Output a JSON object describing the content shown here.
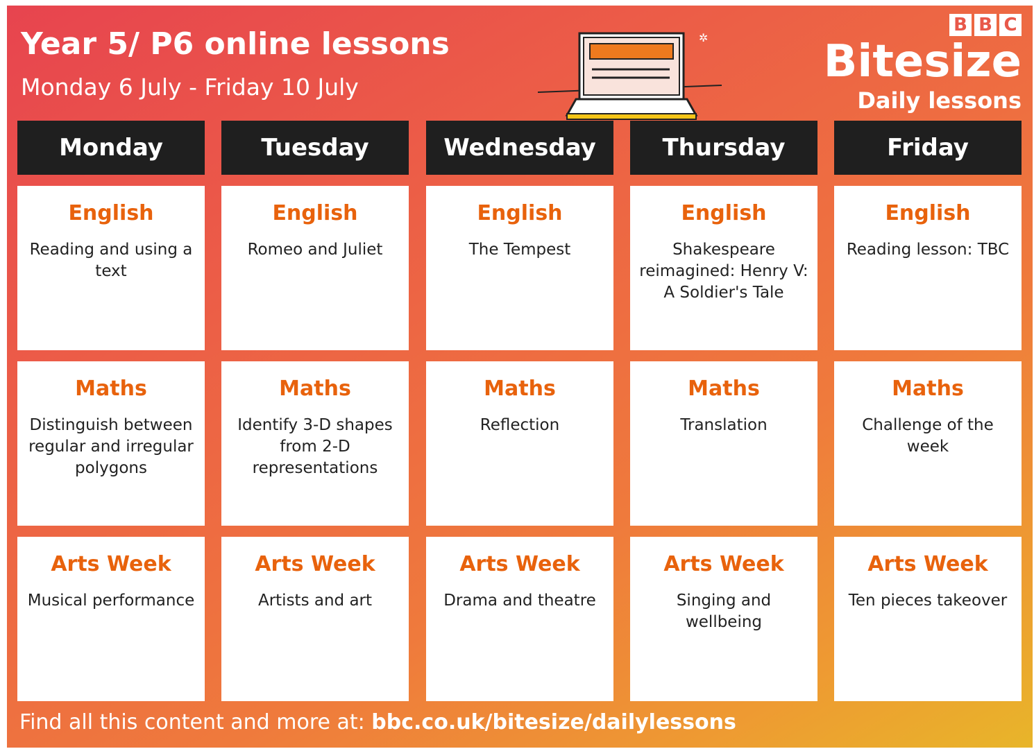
{
  "header": {
    "title": "Year 5/ P6 online lessons",
    "subtitle": "Monday 6 July - Friday 10 July"
  },
  "brand": {
    "letters": [
      "B",
      "B",
      "C"
    ],
    "name": "Bitesize",
    "tagline": "Daily lessons"
  },
  "days": [
    {
      "name": "Monday",
      "lessons": [
        {
          "subject": "English",
          "topic": "Reading and using a text"
        },
        {
          "subject": "Maths",
          "topic": "Distinguish between regular and irregular polygons"
        },
        {
          "subject": "Arts Week",
          "topic": "Musical performance"
        }
      ]
    },
    {
      "name": "Tuesday",
      "lessons": [
        {
          "subject": "English",
          "topic": "Romeo and Juliet"
        },
        {
          "subject": "Maths",
          "topic": "Identify 3-D shapes from 2-D representations"
        },
        {
          "subject": "Arts Week",
          "topic": "Artists and art"
        }
      ]
    },
    {
      "name": "Wednesday",
      "lessons": [
        {
          "subject": "English",
          "topic": "The Tempest"
        },
        {
          "subject": "Maths",
          "topic": "Reflection"
        },
        {
          "subject": "Arts Week",
          "topic": "Drama and theatre"
        }
      ]
    },
    {
      "name": "Thursday",
      "lessons": [
        {
          "subject": "English",
          "topic": "Shakespeare reimagined: Henry V: A Soldier's Tale"
        },
        {
          "subject": "Maths",
          "topic": "Translation"
        },
        {
          "subject": "Arts Week",
          "topic": "Singing and wellbeing"
        }
      ]
    },
    {
      "name": "Friday",
      "lessons": [
        {
          "subject": "English",
          "topic": "Reading lesson: TBC"
        },
        {
          "subject": "Maths",
          "topic": "Challenge of the week"
        },
        {
          "subject": "Arts Week",
          "topic": "Ten pieces takeover"
        }
      ]
    }
  ],
  "footer": {
    "text": "Find all this content and more at:",
    "link": "bbc.co.uk/bitesize/dailylessons"
  }
}
